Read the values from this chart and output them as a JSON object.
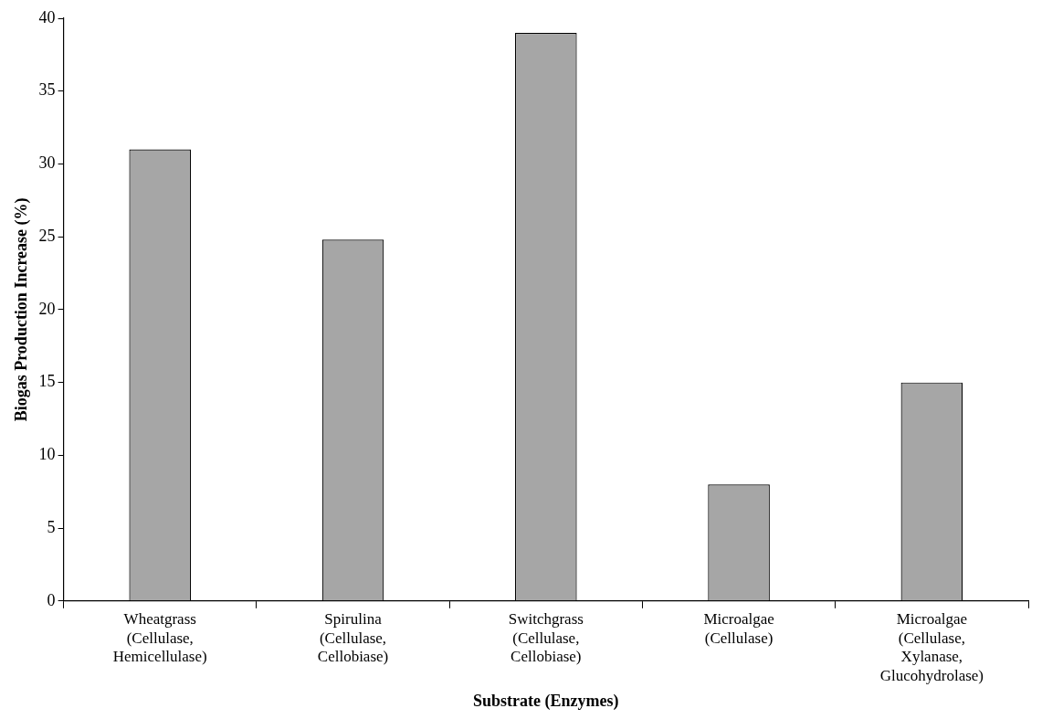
{
  "chart_data": {
    "type": "bar",
    "xlabel": "Substrate (Enzymes)",
    "ylabel": "Biogas Production Increase (%)",
    "categories": [
      "Wheatgrass (Cellulase, Hemicellulase)",
      "Spirulina (Cellulase, Cellobiase)",
      "Switchgrass (Cellulase, Cellobiase)",
      "Microalgae (Cellulase)",
      "Microalgae (Cellulase, Xylanase, Glucohydrolase)"
    ],
    "values": [
      31,
      24.8,
      39,
      8,
      15
    ],
    "color": "#a6a6a6",
    "ylim": [
      0,
      40
    ],
    "yticks": [
      0,
      5,
      10,
      15,
      20,
      25,
      30,
      35,
      40
    ],
    "grid": false,
    "legend": false
  }
}
